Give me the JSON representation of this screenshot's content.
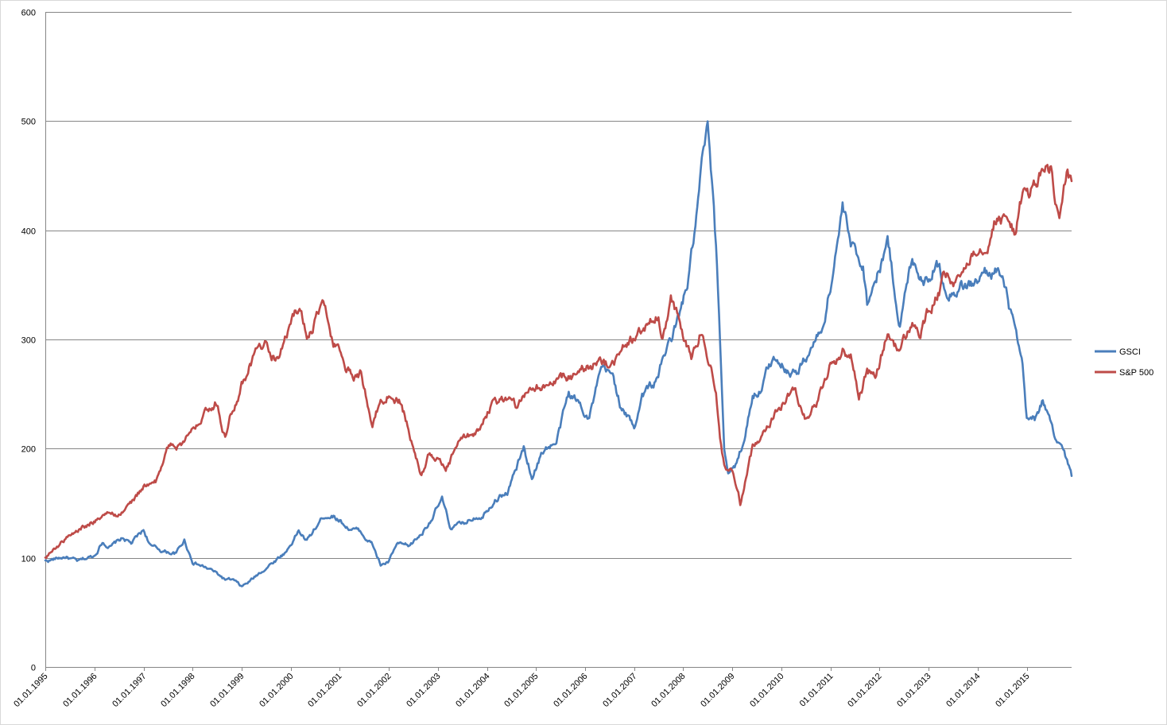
{
  "chart_data": {
    "type": "line",
    "title": "",
    "xlabel": "",
    "ylabel": "",
    "ylim": [
      0,
      600
    ],
    "yticks": [
      0,
      100,
      200,
      300,
      400,
      500,
      600
    ],
    "xlim": [
      "1995-01-01",
      "2015-12-01"
    ],
    "xtick_labels": [
      "01.01.1995",
      "01.01.1996",
      "01.01.1997",
      "01.01.1998",
      "01.01.1999",
      "01.01.2000",
      "01.01.2001",
      "01.01.2002",
      "01.01.2003",
      "01.01.2004",
      "01.01.2005",
      "01.01.2006",
      "01.01.2007",
      "01.01.2008",
      "01.01.2009",
      "01.01.2010",
      "01.01.2011",
      "01.01.2012",
      "01.01.2013",
      "01.01.2014",
      "01.01.2015"
    ],
    "grid": "horizontal",
    "legend_position": "right",
    "series": [
      {
        "name": "GSCI",
        "color": "#4a7ebb",
        "points": [
          [
            "1995-01-01",
            97
          ],
          [
            "1995-06-01",
            101
          ],
          [
            "1995-09-01",
            96
          ],
          [
            "1996-01-01",
            102
          ],
          [
            "1996-03-01",
            115
          ],
          [
            "1996-05-01",
            110
          ],
          [
            "1996-08-01",
            118
          ],
          [
            "1996-10-01",
            113
          ],
          [
            "1997-01-01",
            125
          ],
          [
            "1997-03-01",
            110
          ],
          [
            "1997-06-01",
            106
          ],
          [
            "1997-09-01",
            104
          ],
          [
            "1997-11-01",
            116
          ],
          [
            "1998-01-01",
            97
          ],
          [
            "1998-03-01",
            93
          ],
          [
            "1998-06-01",
            88
          ],
          [
            "1998-09-01",
            80
          ],
          [
            "1998-11-01",
            79
          ],
          [
            "1999-01-01",
            73
          ],
          [
            "1999-03-01",
            78
          ],
          [
            "1999-06-01",
            88
          ],
          [
            "1999-09-01",
            97
          ],
          [
            "1999-12-01",
            106
          ],
          [
            "2000-03-01",
            125
          ],
          [
            "2000-05-01",
            115
          ],
          [
            "2000-09-01",
            138
          ],
          [
            "2000-11-01",
            140
          ],
          [
            "2001-01-01",
            135
          ],
          [
            "2001-03-01",
            128
          ],
          [
            "2001-06-01",
            124
          ],
          [
            "2001-09-01",
            112
          ],
          [
            "2001-11-01",
            93
          ],
          [
            "2002-01-01",
            96
          ],
          [
            "2002-03-01",
            112
          ],
          [
            "2002-06-01",
            110
          ],
          [
            "2002-09-01",
            122
          ],
          [
            "2002-12-01",
            140
          ],
          [
            "2003-02-01",
            153
          ],
          [
            "2003-04-01",
            128
          ],
          [
            "2003-07-01",
            130
          ],
          [
            "2003-10-01",
            138
          ],
          [
            "2003-12-01",
            140
          ],
          [
            "2004-03-01",
            155
          ],
          [
            "2004-06-01",
            160
          ],
          [
            "2004-08-01",
            180
          ],
          [
            "2004-10-01",
            200
          ],
          [
            "2004-12-01",
            175
          ],
          [
            "2005-03-01",
            200
          ],
          [
            "2005-06-01",
            205
          ],
          [
            "2005-09-01",
            250
          ],
          [
            "2005-12-01",
            240
          ],
          [
            "2006-02-01",
            230
          ],
          [
            "2006-05-01",
            270
          ],
          [
            "2006-08-01",
            265
          ],
          [
            "2006-10-01",
            235
          ],
          [
            "2007-01-01",
            220
          ],
          [
            "2007-03-01",
            250
          ],
          [
            "2007-06-01",
            260
          ],
          [
            "2007-09-01",
            290
          ],
          [
            "2007-12-01",
            320
          ],
          [
            "2008-02-01",
            350
          ],
          [
            "2008-04-01",
            400
          ],
          [
            "2008-06-01",
            470
          ],
          [
            "2008-07-01",
            490
          ],
          [
            "2008-08-01",
            440
          ],
          [
            "2008-09-01",
            380
          ],
          [
            "2008-10-01",
            300
          ],
          [
            "2008-11-01",
            200
          ],
          [
            "2008-12-01",
            180
          ],
          [
            "2009-02-01",
            185
          ],
          [
            "2009-04-01",
            210
          ],
          [
            "2009-06-01",
            250
          ],
          [
            "2009-08-01",
            255
          ],
          [
            "2009-10-01",
            275
          ],
          [
            "2009-12-01",
            285
          ],
          [
            "2010-02-01",
            275
          ],
          [
            "2010-05-01",
            270
          ],
          [
            "2010-08-01",
            290
          ],
          [
            "2010-11-01",
            310
          ],
          [
            "2011-01-01",
            350
          ],
          [
            "2011-04-01",
            420
          ],
          [
            "2011-06-01",
            385
          ],
          [
            "2011-09-01",
            370
          ],
          [
            "2011-10-01",
            335
          ],
          [
            "2011-12-01",
            355
          ],
          [
            "2012-03-01",
            390
          ],
          [
            "2012-06-01",
            315
          ],
          [
            "2012-09-01",
            375
          ],
          [
            "2012-12-01",
            355
          ],
          [
            "2013-03-01",
            370
          ],
          [
            "2013-06-01",
            345
          ],
          [
            "2013-09-01",
            350
          ],
          [
            "2013-12-01",
            350
          ],
          [
            "2014-03-01",
            360
          ],
          [
            "2014-06-01",
            365
          ],
          [
            "2014-08-01",
            340
          ],
          [
            "2014-10-01",
            310
          ],
          [
            "2014-12-01",
            270
          ],
          [
            "2015-01-01",
            225
          ],
          [
            "2015-03-01",
            225
          ],
          [
            "2015-05-01",
            245
          ],
          [
            "2015-07-01",
            220
          ],
          [
            "2015-08-01",
            205
          ],
          [
            "2015-10-01",
            200
          ],
          [
            "2015-12-01",
            175
          ]
        ]
      },
      {
        "name": "S&P 500",
        "color": "#be4b48",
        "points": [
          [
            "1995-01-01",
            100
          ],
          [
            "1995-06-01",
            118
          ],
          [
            "1995-12-01",
            132
          ],
          [
            "1996-03-01",
            140
          ],
          [
            "1996-07-01",
            140
          ],
          [
            "1996-10-01",
            150
          ],
          [
            "1997-01-01",
            165
          ],
          [
            "1997-04-01",
            168
          ],
          [
            "1997-07-01",
            200
          ],
          [
            "1997-10-01",
            205
          ],
          [
            "1998-01-01",
            215
          ],
          [
            "1998-04-01",
            240
          ],
          [
            "1998-07-01",
            245
          ],
          [
            "1998-09-01",
            210
          ],
          [
            "1998-11-01",
            240
          ],
          [
            "1999-01-01",
            260
          ],
          [
            "1999-04-01",
            285
          ],
          [
            "1999-07-01",
            295
          ],
          [
            "1999-10-01",
            280
          ],
          [
            "2000-01-01",
            315
          ],
          [
            "2000-03-01",
            330
          ],
          [
            "2000-05-01",
            305
          ],
          [
            "2000-09-01",
            330
          ],
          [
            "2000-11-01",
            300
          ],
          [
            "2001-01-01",
            290
          ],
          [
            "2001-04-01",
            265
          ],
          [
            "2001-06-01",
            270
          ],
          [
            "2001-09-01",
            225
          ],
          [
            "2001-11-01",
            245
          ],
          [
            "2002-01-01",
            250
          ],
          [
            "2002-04-01",
            245
          ],
          [
            "2002-07-01",
            200
          ],
          [
            "2002-09-01",
            175
          ],
          [
            "2002-11-01",
            195
          ],
          [
            "2003-01-01",
            190
          ],
          [
            "2003-03-01",
            178
          ],
          [
            "2003-06-01",
            205
          ],
          [
            "2003-09-01",
            210
          ],
          [
            "2003-12-01",
            225
          ],
          [
            "2004-03-01",
            245
          ],
          [
            "2004-06-01",
            245
          ],
          [
            "2004-08-01",
            240
          ],
          [
            "2004-12-01",
            260
          ],
          [
            "2005-04-01",
            255
          ],
          [
            "2005-08-01",
            265
          ],
          [
            "2005-12-01",
            270
          ],
          [
            "2006-04-01",
            280
          ],
          [
            "2006-07-01",
            275
          ],
          [
            "2006-10-01",
            290
          ],
          [
            "2007-01-01",
            300
          ],
          [
            "2007-05-01",
            315
          ],
          [
            "2007-07-01",
            320
          ],
          [
            "2007-08-01",
            305
          ],
          [
            "2007-10-01",
            335
          ],
          [
            "2007-12-01",
            320
          ],
          [
            "2008-03-01",
            285
          ],
          [
            "2008-05-01",
            305
          ],
          [
            "2008-07-01",
            280
          ],
          [
            "2008-09-01",
            255
          ],
          [
            "2008-10-01",
            215
          ],
          [
            "2008-11-01",
            185
          ],
          [
            "2009-01-01",
            180
          ],
          [
            "2009-03-01",
            150
          ],
          [
            "2009-06-01",
            200
          ],
          [
            "2009-09-01",
            220
          ],
          [
            "2009-12-01",
            235
          ],
          [
            "2010-04-01",
            255
          ],
          [
            "2010-07-01",
            230
          ],
          [
            "2010-10-01",
            245
          ],
          [
            "2011-01-01",
            275
          ],
          [
            "2011-04-01",
            290
          ],
          [
            "2011-06-01",
            285
          ],
          [
            "2011-08-01",
            250
          ],
          [
            "2011-10-01",
            270
          ],
          [
            "2011-12-01",
            265
          ],
          [
            "2012-03-01",
            305
          ],
          [
            "2012-06-01",
            290
          ],
          [
            "2012-09-01",
            315
          ],
          [
            "2012-11-01",
            305
          ],
          [
            "2013-01-01",
            325
          ],
          [
            "2013-05-01",
            355
          ],
          [
            "2013-08-01",
            350
          ],
          [
            "2013-12-01",
            385
          ],
          [
            "2014-03-01",
            390
          ],
          [
            "2014-06-01",
            415
          ],
          [
            "2014-10-01",
            400
          ],
          [
            "2014-12-01",
            430
          ],
          [
            "2015-03-01",
            440
          ],
          [
            "2015-05-01",
            455
          ],
          [
            "2015-07-01",
            455
          ],
          [
            "2015-08-01",
            420
          ],
          [
            "2015-09-01",
            410
          ],
          [
            "2015-11-01",
            450
          ],
          [
            "2015-12-01",
            445
          ]
        ]
      }
    ]
  }
}
